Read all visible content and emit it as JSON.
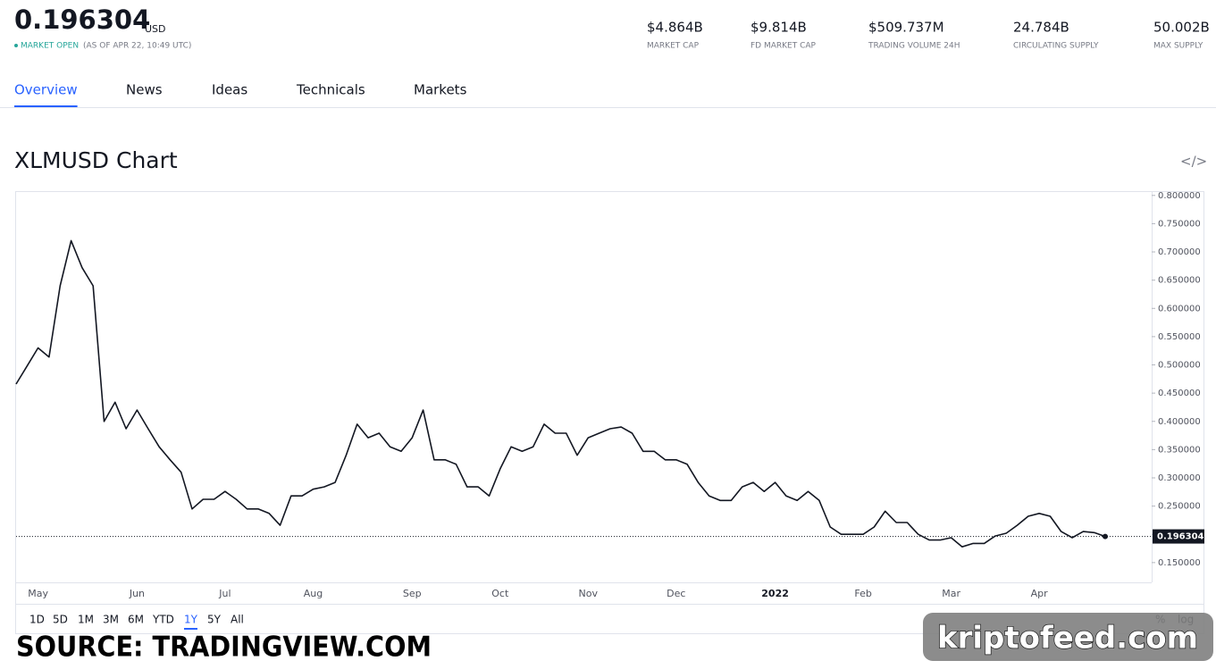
{
  "header": {
    "price": "0.196304",
    "currency": "USD",
    "status": "MARKET OPEN",
    "as_of": "(AS OF APR 22, 10:49 UTC)",
    "stats": [
      {
        "value": "$4.864B",
        "label": "MARKET CAP"
      },
      {
        "value": "$9.814B",
        "label": "FD MARKET CAP"
      },
      {
        "value": "$509.737M",
        "label": "TRADING VOLUME 24H"
      },
      {
        "value": "24.784B",
        "label": "CIRCULATING SUPPLY"
      },
      {
        "value": "50.002B",
        "label": "MAX SUPPLY"
      }
    ]
  },
  "tabs": [
    "Overview",
    "News",
    "Ideas",
    "Technicals",
    "Markets"
  ],
  "chart_data": {
    "type": "line",
    "title": "XLMUSD Chart",
    "color": "#131722",
    "grid": false,
    "categories": [
      null,
      null,
      "May",
      null,
      null,
      null,
      null,
      null,
      null,
      null,
      null,
      "Jun",
      null,
      null,
      null,
      null,
      null,
      null,
      null,
      "Jul",
      null,
      null,
      null,
      null,
      null,
      null,
      null,
      "Aug",
      null,
      null,
      null,
      null,
      null,
      null,
      null,
      null,
      "Sep",
      null,
      null,
      null,
      null,
      null,
      null,
      null,
      "Oct",
      null,
      null,
      null,
      null,
      null,
      null,
      null,
      "Nov",
      null,
      null,
      null,
      null,
      null,
      null,
      null,
      "Dec",
      null,
      null,
      null,
      null,
      null,
      null,
      null,
      null,
      "2022",
      null,
      null,
      null,
      null,
      null,
      null,
      null,
      "Feb",
      null,
      null,
      null,
      null,
      null,
      null,
      null,
      "Mar",
      null,
      null,
      null,
      null,
      null,
      null,
      null,
      "Apr",
      null,
      null,
      null,
      null,
      null,
      null
    ],
    "values": [
      0.466,
      0.498,
      0.53,
      0.514,
      0.64,
      0.72,
      0.672,
      0.64,
      0.4,
      0.434,
      0.387,
      0.42,
      0.387,
      0.355,
      0.332,
      0.31,
      0.245,
      0.262,
      0.262,
      0.276,
      0.262,
      0.245,
      0.245,
      0.237,
      0.216,
      0.268,
      0.268,
      0.28,
      0.284,
      0.292,
      0.34,
      0.395,
      0.371,
      0.379,
      0.355,
      0.347,
      0.371,
      0.42,
      0.332,
      0.332,
      0.324,
      0.284,
      0.284,
      0.268,
      0.316,
      0.355,
      0.347,
      0.355,
      0.395,
      0.379,
      0.379,
      0.34,
      0.371,
      0.379,
      0.387,
      0.39,
      0.379,
      0.347,
      0.347,
      0.332,
      0.332,
      0.324,
      0.292,
      0.268,
      0.26,
      0.26,
      0.284,
      0.292,
      0.276,
      0.292,
      0.268,
      0.26,
      0.276,
      0.26,
      0.213,
      0.2,
      0.2,
      0.2,
      0.213,
      0.241,
      0.221,
      0.221,
      0.2,
      0.19,
      0.19,
      0.194,
      0.178,
      0.184,
      0.184,
      0.197,
      0.202,
      0.216,
      0.232,
      0.237,
      0.232,
      0.205,
      0.194,
      0.205,
      0.203,
      0.196304
    ],
    "ylim": [
      0.115,
      0.806
    ],
    "yticks": [
      {
        "value": 0.8,
        "label": "0.800000"
      },
      {
        "value": 0.75,
        "label": "0.750000"
      },
      {
        "value": 0.7,
        "label": "0.700000"
      },
      {
        "value": 0.65,
        "label": "0.650000"
      },
      {
        "value": 0.6,
        "label": "0.600000"
      },
      {
        "value": 0.55,
        "label": "0.550000"
      },
      {
        "value": 0.5,
        "label": "0.500000"
      },
      {
        "value": 0.45,
        "label": "0.450000"
      },
      {
        "value": 0.4,
        "label": "0.400000"
      },
      {
        "value": 0.35,
        "label": "0.350000"
      },
      {
        "value": 0.3,
        "label": "0.300000"
      },
      {
        "value": 0.25,
        "label": "0.250000"
      },
      {
        "value": 0.2,
        "label": "0.200000"
      },
      {
        "value": 0.15,
        "label": "0.150000"
      }
    ]
  },
  "ranges": [
    "1D",
    "5D",
    "1M",
    "3M",
    "6M",
    "YTD",
    "1Y",
    "5Y",
    "All"
  ],
  "scale_options": [
    "%",
    "log"
  ],
  "source": "SOURCE: TRADINGVIEW.COM",
  "watermark": "kriptofeed.com"
}
